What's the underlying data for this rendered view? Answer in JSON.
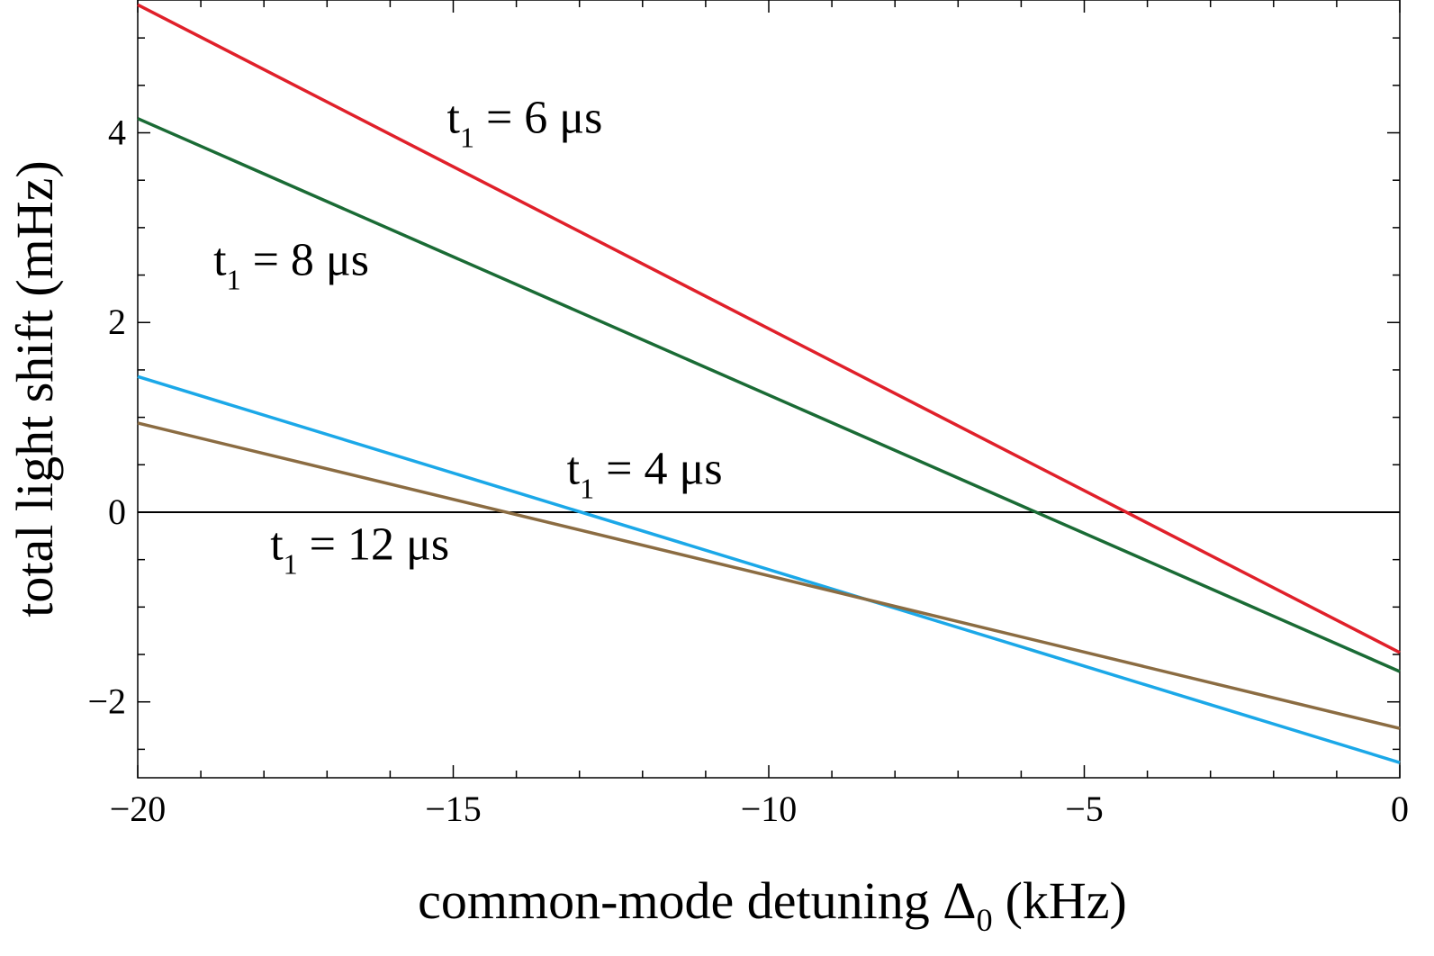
{
  "chart_data": {
    "type": "line",
    "xlabel": "common-mode detuning Δ",
    "xlabel_sub": "0",
    "xlabel_unit": "(kHz)",
    "ylabel": "total light shift (mHz)",
    "xlim": [
      -20,
      0
    ],
    "ylim": [
      -2.8,
      5.4
    ],
    "x_ticks": [
      -20,
      -15,
      -10,
      -5,
      0
    ],
    "x_tick_labels": [
      "−20",
      "−15",
      "−10",
      "−5",
      "0"
    ],
    "y_ticks": [
      -2,
      0,
      2,
      4
    ],
    "y_tick_labels": [
      "−2",
      "0",
      "2",
      "4"
    ],
    "zero_line": true,
    "grid": false,
    "series": [
      {
        "name": "t",
        "sub": "1",
        "rest": " = 6 μs",
        "color": "#e0202a",
        "x": [
          -20,
          0
        ],
        "y": [
          5.35,
          -1.48
        ],
        "label_at": [
          -15.1,
          4.0
        ]
      },
      {
        "name": "t",
        "sub": "1",
        "rest": " = 8 μs",
        "color": "#1a6b35",
        "x": [
          -20,
          0
        ],
        "y": [
          4.15,
          -1.68
        ],
        "label_at": [
          -18.8,
          2.5
        ]
      },
      {
        "name": "t",
        "sub": "1",
        "rest": " = 4 μs",
        "color": "#1ba8e8",
        "x": [
          -20,
          0
        ],
        "y": [
          1.43,
          -2.64
        ],
        "label_at": [
          -13.2,
          0.3
        ]
      },
      {
        "name": "t",
        "sub": "1",
        "rest": " = 12 μs",
        "color": "#8b6c42",
        "x": [
          -20,
          0
        ],
        "y": [
          0.94,
          -2.28
        ],
        "label_at": [
          -17.9,
          -0.5
        ]
      }
    ]
  }
}
